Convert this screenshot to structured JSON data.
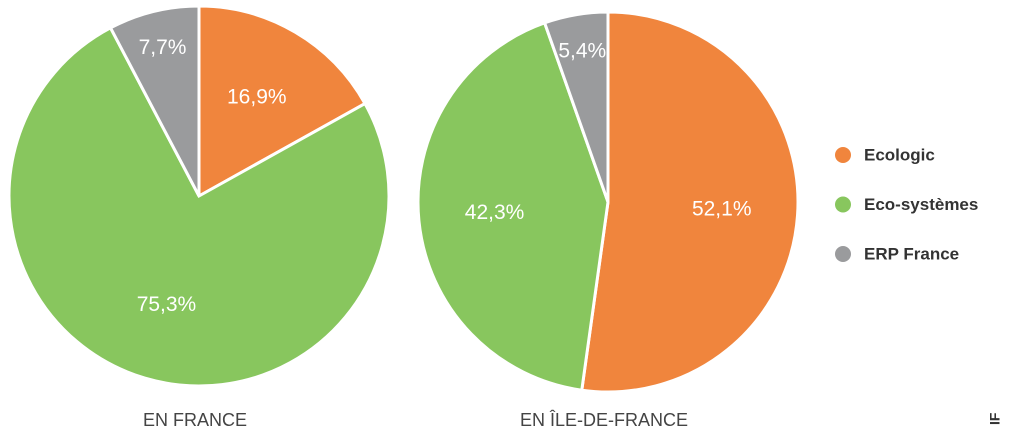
{
  "chart_data": [
    {
      "type": "pie",
      "title": "EN FRANCE",
      "categories": [
        "Ecologic",
        "Eco-systèmes",
        "ERP France"
      ],
      "values": [
        16.9,
        75.3,
        7.7
      ],
      "value_labels": [
        "16,9%",
        "75,3%",
        "7,7%"
      ],
      "colors": [
        "#f0853d",
        "#88c65e",
        "#9a9b9d"
      ]
    },
    {
      "type": "pie",
      "title": "EN ÎLE-DE-FRANCE",
      "categories": [
        "Ecologic",
        "Eco-systèmes",
        "ERP France"
      ],
      "values": [
        52.1,
        42.3,
        5.4
      ],
      "value_labels": [
        "52,1%",
        "42,3%",
        "5,4%"
      ],
      "colors": [
        "#f0853d",
        "#88c65e",
        "#9a9b9d"
      ]
    }
  ],
  "watermark": "IF"
}
